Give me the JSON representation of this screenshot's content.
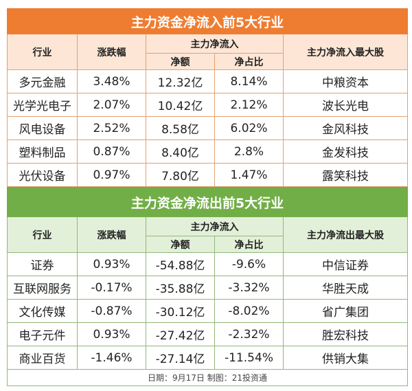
{
  "inflow": {
    "title": "主力资金净流入前5大行业",
    "headers": {
      "industry": "行业",
      "change": "涨跌幅",
      "flow": "主力净流入",
      "amount": "净额",
      "ratio": "净占比",
      "top_stock": "主力净流入最大股"
    },
    "rows": [
      {
        "industry": "多元金融",
        "change": "3.48%",
        "amount": "12.32亿",
        "ratio": "8.14%",
        "stock": "中粮资本"
      },
      {
        "industry": "光学光电子",
        "change": "2.07%",
        "amount": "10.42亿",
        "ratio": "2.12%",
        "stock": "波长光电"
      },
      {
        "industry": "风电设备",
        "change": "2.52%",
        "amount": "8.58亿",
        "ratio": "6.02%",
        "stock": "金风科技"
      },
      {
        "industry": "塑料制品",
        "change": "0.87%",
        "amount": "8.40亿",
        "ratio": "2.8%",
        "stock": "金发科技"
      },
      {
        "industry": "光伏设备",
        "change": "0.97%",
        "amount": "7.80亿",
        "ratio": "1.47%",
        "stock": "露笑科技"
      }
    ]
  },
  "outflow": {
    "title": "主力资金净流出前5大行业",
    "headers": {
      "industry": "行业",
      "change": "涨跌幅",
      "flow": "主力净流入",
      "amount": "净额",
      "ratio": "净占比",
      "top_stock": "主力净流出最大股"
    },
    "rows": [
      {
        "industry": "证券",
        "change": "0.93%",
        "amount": "-54.88亿",
        "ratio": "-9.6%",
        "stock": "中信证券"
      },
      {
        "industry": "互联网服务",
        "change": "-0.17%",
        "amount": "-35.88亿",
        "ratio": "-3.32%",
        "stock": "华胜天成"
      },
      {
        "industry": "文化传媒",
        "change": "-0.87%",
        "amount": "-30.12亿",
        "ratio": "-8.02%",
        "stock": "省广集团"
      },
      {
        "industry": "电子元件",
        "change": "0.93%",
        "amount": "-27.42亿",
        "ratio": "-2.32%",
        "stock": "胜宏科技"
      },
      {
        "industry": "商业百货",
        "change": "-1.46%",
        "amount": "-27.14亿",
        "ratio": "-11.54%",
        "stock": "供销大集"
      }
    ]
  },
  "footer": "日期：9月17日 制图：21投资通"
}
